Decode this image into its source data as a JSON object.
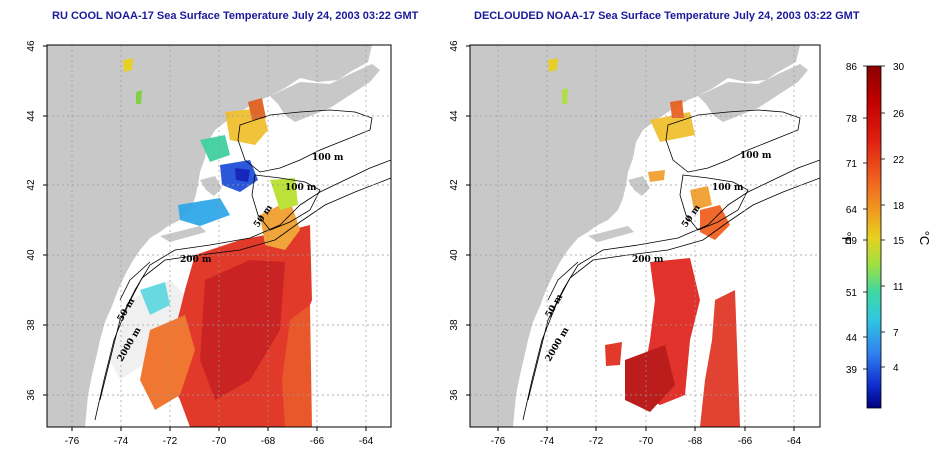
{
  "titles": {
    "left": "RU COOL NOAA-17 Sea Surface Temperature July 24, 2003 03:22 GMT",
    "right": "DECLOUDED NOAA-17 Sea Surface Temperature July 24, 2003 03:22 GMT"
  },
  "axes": {
    "lon_ticks": [
      "-76",
      "-74",
      "-72",
      "-70",
      "-68",
      "-66",
      "-64"
    ],
    "lat_ticks": [
      "46",
      "44",
      "42",
      "40",
      "38",
      "36"
    ]
  },
  "contour_labels": {
    "left": [
      "100 m",
      "100 m",
      "50 m",
      "200 m",
      "50 m",
      "2000 m"
    ],
    "right": [
      "100 m",
      "100 m",
      "50 m",
      "200 m",
      "50 m",
      "2000 m"
    ]
  },
  "colorbar": {
    "fahrenheit_ticks": [
      "86",
      "78",
      "71",
      "64",
      "59",
      "51",
      "44",
      "39"
    ],
    "celsius_ticks": [
      "30",
      "26",
      "22",
      "18",
      "15",
      "11",
      "7",
      "4"
    ],
    "fahrenheit_unit": "°F",
    "celsius_unit": "°C",
    "gradient": [
      "#8b0000",
      "#c00000",
      "#e02010",
      "#f06020",
      "#f09820",
      "#e8d020",
      "#a0e040",
      "#40d8a0",
      "#30c8e0",
      "#3080f0",
      "#1030d0",
      "#000080"
    ]
  },
  "colors": {
    "land": "#c8c8c8",
    "ocean": "#ffffff",
    "grid": "#9a9a9a",
    "title": "#1a1a9a"
  }
}
